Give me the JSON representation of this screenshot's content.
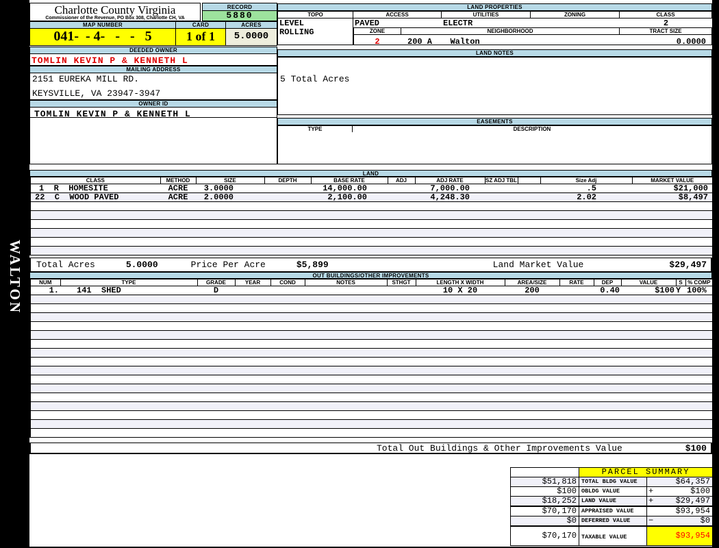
{
  "colors": {
    "band_blue": "#b7d9e6",
    "record_green": "#9de29d",
    "highlight_yellow": "#ffff00",
    "acres_cream": "#eeeedd",
    "owner_red": "#dd0000",
    "taxable_red": "#ff0000"
  },
  "sidebar": {
    "vertical_label": "WALTON"
  },
  "header": {
    "county_title": "Charlotte County Virginia",
    "commissioner_line": "Commissioner of the Revenue, PO Box 308, Charlotte CH, VA",
    "record_label": "RECORD",
    "record_value": "5880",
    "map_number_label": "MAP NUMBER",
    "map_number_value": "041-  - 4-   -   -   5",
    "card_label": "CARD",
    "card_value": "1 of 1",
    "acres_label": "ACRES",
    "acres_value": "5.0000"
  },
  "owner": {
    "deeded_owner_label": "DEEDED OWNER",
    "deeded_owner": "TOMLIN KEVIN P & KENNETH L",
    "mailing_address_label": "MAILING ADDRESS",
    "address_line1": "2151 EUREKA MILL RD.",
    "address_line2": "KEYSVILLE, VA 23947-3947",
    "owner_id_label": "OWNER ID",
    "owner_id": "TOMLIN KEVIN P & KENNETH L"
  },
  "land_properties": {
    "section_label": "LAND PROPERTIES",
    "topo_label": "TOPO",
    "access_label": "ACCESS",
    "utilities_label": "UTILITIES",
    "zoning_label": "ZONING",
    "class_label": "CLASS",
    "topo_line1": "LEVEL",
    "topo_line2": "ROLLING",
    "access": "PAVED",
    "utilities": "ELECTR",
    "zoning": "",
    "class": "2",
    "zone_label": "ZONE",
    "zone": "2",
    "neighborhood_label": "NEIGHBORHOOD",
    "neighborhood_code": "200 A",
    "neighborhood_name": "Walton",
    "tract_size_label": "TRACT SIZE",
    "tract_size": "0.0000"
  },
  "land_notes": {
    "section_label": "LAND NOTES",
    "note": "5 Total Acres"
  },
  "easements": {
    "section_label": "EASEMENTS",
    "type_label": "TYPE",
    "description_label": "DESCRIPTION"
  },
  "land": {
    "section_label": "LAND",
    "columns": [
      "CLASS",
      "METHOD",
      "SIZE",
      "DEPTH",
      "BASE RATE",
      "ADJ",
      "ADJ RATE",
      "SZ ADJ TBL",
      "",
      "Size Adj",
      "MARKET VALUE"
    ],
    "rows": [
      [
        "1  R  HOMESITE",
        "ACRE",
        "3.0000",
        "",
        "14,000.00",
        "",
        "7,000.00",
        "",
        "",
        ".5",
        "$21,000"
      ],
      [
        "22  C  WOOD PAVED",
        "ACRE",
        "2.0000",
        "",
        "2,100.00",
        "",
        "4,248.30",
        "",
        "",
        "2.02",
        "$8,497"
      ]
    ],
    "empty_row_count": 6,
    "total_acres_label": "Total Acres",
    "total_acres": "5.0000",
    "price_per_acre_label": "Price Per Acre",
    "price_per_acre": "$5,899",
    "land_market_value_label": "Land Market Value",
    "land_market_value": "$29,497"
  },
  "out_buildings": {
    "section_label": "OUT BUILDINGS/OTHER IMPROVEMENTS",
    "columns": [
      "NUM",
      "TYPE",
      "GRADE",
      "YEAR",
      "COND",
      "NOTES",
      "STHGT",
      "LENGTH X WIDTH",
      "AREA/SIZE",
      "RATE",
      "DEP",
      "VALUE",
      "S",
      "% COMP"
    ],
    "rows": [
      [
        "1.",
        "141  SHED",
        "D",
        "",
        "",
        "",
        "",
        "10 X 20",
        "200",
        "",
        "0.40",
        "$100",
        "Y",
        "100%"
      ]
    ],
    "empty_row_count": 16,
    "total_label": "Total Out Buildings & Other Improvements Value",
    "total_value": "$100"
  },
  "parcel_summary": {
    "title": "PARCEL SUMMARY",
    "rows": [
      {
        "prior": "$51,818",
        "label": "TOTAL BLDG VALUE",
        "op": "",
        "value": "$64,357"
      },
      {
        "prior": "$100",
        "label": "OBLDG VALUE",
        "op": "+",
        "value": "$100"
      },
      {
        "prior": "$18,252",
        "label": "LAND VALUE",
        "op": "+",
        "value": "$29,497"
      },
      {
        "prior": "$70,170",
        "label": "APPRAISED VALUE",
        "op": "",
        "value": "$93,954"
      },
      {
        "prior": "$0",
        "label": "DEFERRED VALUE",
        "op": "−",
        "value": "$0"
      }
    ],
    "taxable_prior": "$70,170",
    "taxable_label": "TAXABLE VALUE",
    "taxable_value": "$93,954"
  }
}
